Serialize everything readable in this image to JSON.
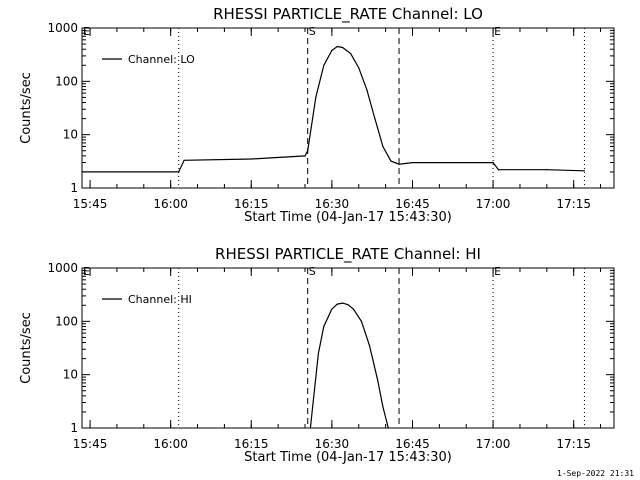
{
  "footer": {
    "timestamp": "1-Sep-2022 21:31"
  },
  "chart_data": [
    {
      "type": "line",
      "title": "RHESSI PARTICLE_RATE Channel: LO",
      "xlabel": "Start Time (04-Jan-17 15:43:30)",
      "ylabel": "Counts/sec",
      "yscale": "log",
      "ylim": [
        1,
        1000
      ],
      "xlim": [
        "15:43:30",
        "17:22:30"
      ],
      "x_ticks": [
        "15:45",
        "16:00",
        "16:15",
        "16:30",
        "16:45",
        "17:00",
        "17:15"
      ],
      "y_ticks": [
        "1",
        "10",
        "100",
        "1000"
      ],
      "legend": {
        "position": "top-left"
      },
      "markers": [
        {
          "label": "E",
          "time": "15:43:30",
          "style": "dotted"
        },
        {
          "label": "",
          "time": "16:01:30",
          "style": "dotted"
        },
        {
          "label": "S",
          "time": "16:25:30",
          "style": "dashed"
        },
        {
          "label": "",
          "time": "16:42:30",
          "style": "dashed"
        },
        {
          "label": "E",
          "time": "17:00:00",
          "style": "dotted"
        },
        {
          "label": "",
          "time": "17:17:00",
          "style": "dotted"
        }
      ],
      "series": [
        {
          "name": "Channel: LO",
          "x": [
            "15:43:30",
            "16:01:30",
            "16:02:30",
            "16:15:00",
            "16:25:00",
            "16:25:30",
            "16:27:00",
            "16:28:30",
            "16:30:00",
            "16:31:00",
            "16:32:00",
            "16:33:30",
            "16:35:00",
            "16:36:30",
            "16:38:00",
            "16:39:30",
            "16:41:00",
            "16:42:30",
            "16:45:00",
            "17:00:00",
            "17:01:00",
            "17:10:00",
            "17:17:00"
          ],
          "y": [
            2.0,
            2.0,
            3.3,
            3.5,
            4.0,
            5.0,
            50,
            200,
            380,
            450,
            430,
            330,
            180,
            70,
            20,
            6,
            3.2,
            2.8,
            3.0,
            3.0,
            2.2,
            2.2,
            2.1
          ]
        }
      ]
    },
    {
      "type": "line",
      "title": "RHESSI PARTICLE_RATE Channel: HI",
      "xlabel": "Start Time (04-Jan-17 15:43:30)",
      "ylabel": "Counts/sec",
      "yscale": "log",
      "ylim": [
        1,
        1000
      ],
      "xlim": [
        "15:43:30",
        "17:22:30"
      ],
      "x_ticks": [
        "15:45",
        "16:00",
        "16:15",
        "16:30",
        "16:45",
        "17:00",
        "17:15"
      ],
      "y_ticks": [
        "1",
        "10",
        "100",
        "1000"
      ],
      "legend": {
        "position": "top-left"
      },
      "markers": [
        {
          "label": "E",
          "time": "15:43:30",
          "style": "dotted"
        },
        {
          "label": "",
          "time": "16:01:30",
          "style": "dotted"
        },
        {
          "label": "S",
          "time": "16:25:30",
          "style": "dashed"
        },
        {
          "label": "",
          "time": "16:42:30",
          "style": "dashed"
        },
        {
          "label": "E",
          "time": "17:00:00",
          "style": "dotted"
        },
        {
          "label": "",
          "time": "17:17:00",
          "style": "dotted"
        }
      ],
      "series": [
        {
          "name": "Channel: HI",
          "x": [
            "16:26:00",
            "16:26:30",
            "16:27:30",
            "16:28:30",
            "16:30:00",
            "16:31:00",
            "16:32:00",
            "16:33:00",
            "16:34:00",
            "16:35:30",
            "16:37:00",
            "16:38:30",
            "16:39:30",
            "16:40:30"
          ],
          "y": [
            1.0,
            3,
            25,
            80,
            170,
            210,
            220,
            205,
            170,
            100,
            35,
            8,
            2.5,
            1.0
          ]
        }
      ]
    }
  ]
}
